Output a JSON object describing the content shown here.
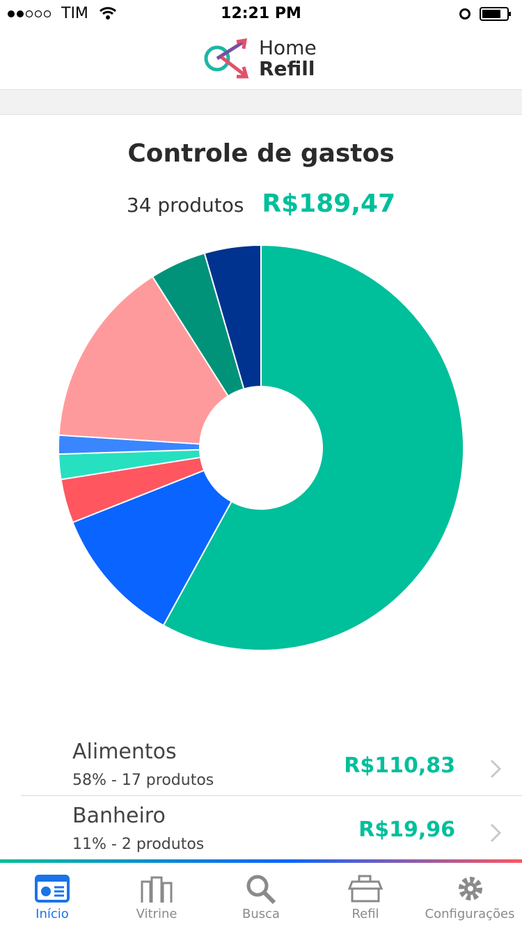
{
  "status_bar": {
    "carrier": "TIM",
    "time": "12:21 PM"
  },
  "header": {
    "logo_line1": "Home",
    "logo_line2": "Refill"
  },
  "title": "Controle de gastos",
  "summary": {
    "count": "34 produtos",
    "total": "R$189,47"
  },
  "chart_data": {
    "type": "donut",
    "values": [
      58,
      11,
      3.5,
      2,
      1.5,
      15,
      4.5,
      4.5
    ],
    "colors": [
      "#00bf9b",
      "#0a64ff",
      "#ff5660",
      "#27e0c0",
      "#3a86ff",
      "#ff9a9c",
      "#00937a",
      "#00338f"
    ]
  },
  "list": [
    {
      "name": "Alimentos",
      "detail": "58% - 17 produtos",
      "amount": "R$110,83"
    },
    {
      "name": "Banheiro",
      "detail": "11% - 2 produtos",
      "amount": "R$19,96"
    }
  ],
  "tabs": [
    "Início",
    "Vitrine",
    "Busca",
    "Refil",
    "Configurações"
  ]
}
